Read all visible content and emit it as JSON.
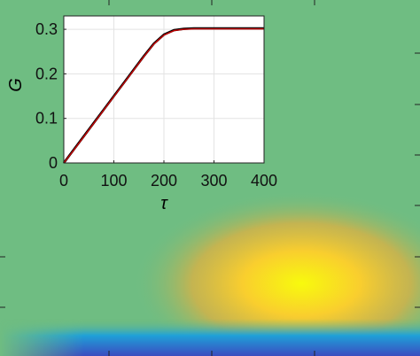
{
  "background_heatmap": {
    "type": "heatmap",
    "colormap": [
      "#3b4cc0",
      "#1fa0d8",
      "#34b89f",
      "#6fbd82",
      "#d9b245",
      "#f9ce2e",
      "#f8fa0d"
    ]
  },
  "chart_data": {
    "type": "line",
    "title": "",
    "xlabel": "τ",
    "ylabel": "G",
    "xlim": [
      0,
      400
    ],
    "ylim": [
      0,
      0.33
    ],
    "x_ticks": [
      "0",
      "100",
      "200",
      "300",
      "400"
    ],
    "y_ticks": [
      "0",
      "0.1",
      "0.2",
      "0.3"
    ],
    "x_tick_values": [
      0,
      100,
      200,
      300,
      400
    ],
    "y_tick_values": [
      0,
      0.1,
      0.2,
      0.3
    ],
    "grid": true,
    "series": [
      {
        "color": "#000000",
        "x": [
          0,
          20,
          40,
          60,
          80,
          100,
          120,
          140,
          160,
          180,
          200,
          220,
          240,
          260,
          280,
          300,
          320,
          340,
          360,
          380,
          400
        ],
        "y": [
          0,
          0.03,
          0.06,
          0.09,
          0.12,
          0.15,
          0.18,
          0.21,
          0.24,
          0.268,
          0.288,
          0.298,
          0.301,
          0.302,
          0.302,
          0.302,
          0.302,
          0.302,
          0.302,
          0.302,
          0.302
        ]
      },
      {
        "color": "#cc0000",
        "x": [
          0,
          20,
          40,
          60,
          80,
          100,
          120,
          140,
          160,
          180,
          200,
          220,
          240,
          260,
          280,
          300,
          320,
          340,
          360,
          380,
          400
        ],
        "y": [
          0,
          0.029,
          0.059,
          0.089,
          0.119,
          0.149,
          0.179,
          0.209,
          0.239,
          0.267,
          0.287,
          0.297,
          0.3,
          0.301,
          0.301,
          0.301,
          0.301,
          0.301,
          0.301,
          0.301,
          0.301
        ]
      }
    ]
  }
}
